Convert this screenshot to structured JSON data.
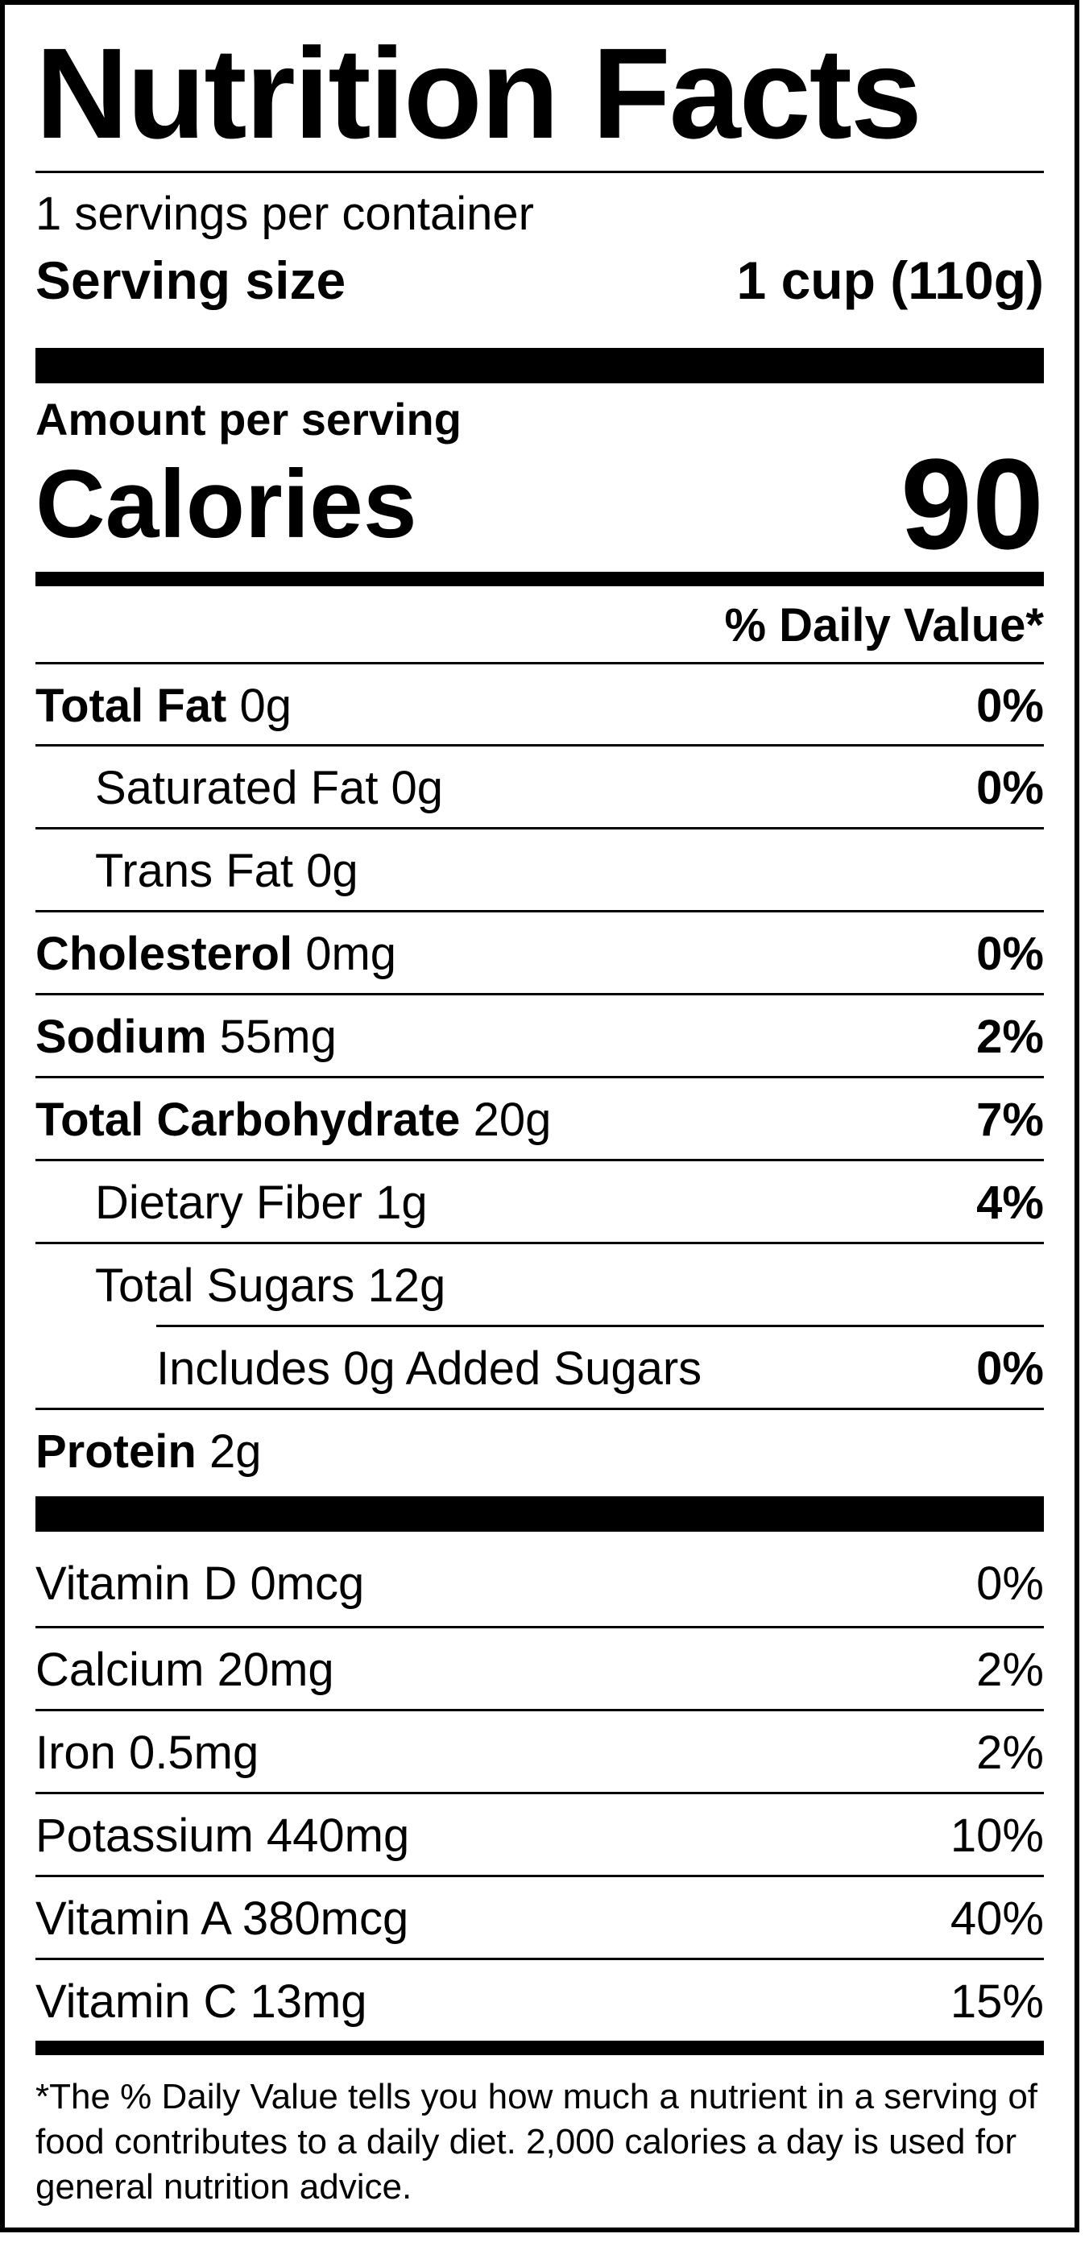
{
  "title": "Nutrition Facts",
  "servings_per_container": "1 servings per container",
  "serving_size_label": "Serving size",
  "serving_size_value": "1 cup (110g)",
  "amount_per_serving": "Amount per serving",
  "calories_label": "Calories",
  "calories_value": "90",
  "daily_value_header": "% Daily Value*",
  "nutrients": {
    "total_fat": {
      "name": "Total Fat",
      "amount": "0g",
      "dv": "0%"
    },
    "saturated_fat": {
      "name": "Saturated Fat 0g",
      "dv": "0%"
    },
    "trans_fat": {
      "name": "Trans Fat 0g"
    },
    "cholesterol": {
      "name": "Cholesterol",
      "amount": "0mg",
      "dv": "0%"
    },
    "sodium": {
      "name": "Sodium",
      "amount": "55mg",
      "dv": "2%"
    },
    "total_carbohydrate": {
      "name": "Total Carbohydrate",
      "amount": "20g",
      "dv": "7%"
    },
    "dietary_fiber": {
      "name": "Dietary Fiber 1g",
      "dv": "4%"
    },
    "total_sugars": {
      "name": "Total Sugars 12g"
    },
    "added_sugars": {
      "name": "Includes 0g Added Sugars",
      "dv": "0%"
    },
    "protein": {
      "name": "Protein",
      "amount": "2g"
    }
  },
  "vitamins": [
    {
      "name": "Vitamin D 0mcg",
      "dv": "0%"
    },
    {
      "name": "Calcium 20mg",
      "dv": "2%"
    },
    {
      "name": "Iron 0.5mg",
      "dv": "2%"
    },
    {
      "name": "Potassium 440mg",
      "dv": "10%"
    },
    {
      "name": "Vitamin A 380mcg",
      "dv": "40%"
    },
    {
      "name": "Vitamin C 13mg",
      "dv": "15%"
    }
  ],
  "footnote": "*The % Daily Value tells you how much a nutrient in a serving of food contributes to a daily diet. 2,000 calories a day is used for general nutrition advice."
}
